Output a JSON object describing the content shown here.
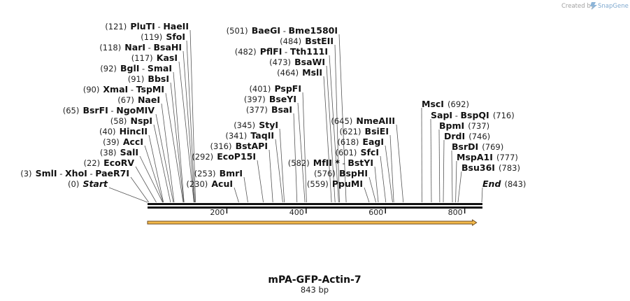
{
  "credit": {
    "prefix": "Created by",
    "brand": "SnapGene"
  },
  "sequence": {
    "name": "mPA-GFP-Actin-7",
    "length_label": "843 bp",
    "length": 843
  },
  "ruler": {
    "ticks": [
      200,
      400,
      600,
      800
    ]
  },
  "feature": {
    "from": 0,
    "to": 830,
    "color": "#f0b040"
  },
  "sites": [
    {
      "pos": 0,
      "label": "(0)",
      "names": [
        "Start"
      ],
      "italic": true
    },
    {
      "pos": 3,
      "label": "(3)",
      "names": [
        "SmlI",
        "XhoI",
        "PaeR7I"
      ]
    },
    {
      "pos": 22,
      "label": "(22)",
      "names": [
        "EcoRV"
      ]
    },
    {
      "pos": 38,
      "label": "(38)",
      "names": [
        "SalI"
      ]
    },
    {
      "pos": 39,
      "label": "(39)",
      "names": [
        "AccI"
      ]
    },
    {
      "pos": 40,
      "label": "(40)",
      "names": [
        "HincII"
      ]
    },
    {
      "pos": 58,
      "label": "(58)",
      "names": [
        "NspI"
      ]
    },
    {
      "pos": 65,
      "label": "(65)",
      "names": [
        "BsrFI",
        "NgoMIV"
      ]
    },
    {
      "pos": 67,
      "label": "(67)",
      "names": [
        "NaeI"
      ]
    },
    {
      "pos": 90,
      "label": "(90)",
      "names": [
        "XmaI",
        "TspMI"
      ]
    },
    {
      "pos": 91,
      "label": "(91)",
      "names": [
        "BbsI"
      ]
    },
    {
      "pos": 92,
      "label": "(92)",
      "names": [
        "BglI",
        "SmaI"
      ]
    },
    {
      "pos": 117,
      "label": "(117)",
      "names": [
        "KasI"
      ]
    },
    {
      "pos": 118,
      "label": "(118)",
      "names": [
        "NarI",
        "BsaHI"
      ]
    },
    {
      "pos": 119,
      "label": "(119)",
      "names": [
        "SfoI"
      ]
    },
    {
      "pos": 121,
      "label": "(121)",
      "names": [
        "PluTI",
        "HaeII"
      ]
    },
    {
      "pos": 230,
      "label": "(230)",
      "names": [
        "AcuI"
      ]
    },
    {
      "pos": 253,
      "label": "(253)",
      "names": [
        "BmrI"
      ]
    },
    {
      "pos": 292,
      "label": "(292)",
      "names": [
        "EcoP15I"
      ]
    },
    {
      "pos": 316,
      "label": "(316)",
      "names": [
        "BstAPI"
      ]
    },
    {
      "pos": 341,
      "label": "(341)",
      "names": [
        "TaqII"
      ]
    },
    {
      "pos": 345,
      "label": "(345)",
      "names": [
        "StyI"
      ]
    },
    {
      "pos": 377,
      "label": "(377)",
      "names": [
        "BsaI"
      ]
    },
    {
      "pos": 397,
      "label": "(397)",
      "names": [
        "BseYI"
      ]
    },
    {
      "pos": 401,
      "label": "(401)",
      "names": [
        "PspFI"
      ]
    },
    {
      "pos": 464,
      "label": "(464)",
      "names": [
        "MslI"
      ]
    },
    {
      "pos": 473,
      "label": "(473)",
      "names": [
        "BsaWI"
      ]
    },
    {
      "pos": 482,
      "label": "(482)",
      "names": [
        "PflFI",
        "Tth111I"
      ]
    },
    {
      "pos": 484,
      "label": "(484)",
      "names": [
        "BstEII"
      ]
    },
    {
      "pos": 501,
      "label": "(501)",
      "names": [
        "BaeGI",
        "Bme1580I"
      ]
    },
    {
      "pos": 559,
      "label": "(559)",
      "names": [
        "PpuMI"
      ]
    },
    {
      "pos": 576,
      "label": "(576)",
      "names": [
        "BspHI"
      ]
    },
    {
      "pos": 582,
      "label": "(582)",
      "names": [
        "MfII *",
        "BstYI"
      ]
    },
    {
      "pos": 601,
      "label": "(601)",
      "names": [
        "SfcI"
      ]
    },
    {
      "pos": 618,
      "label": "(618)",
      "names": [
        "EagI"
      ]
    },
    {
      "pos": 621,
      "label": "(621)",
      "names": [
        "BsiEI"
      ]
    },
    {
      "pos": 645,
      "label": "(645)",
      "names": [
        "NmeAIII"
      ]
    },
    {
      "pos": 692,
      "label": "(692)",
      "names": [
        "MscI"
      ]
    },
    {
      "pos": 716,
      "label": "(716)",
      "names": [
        "SapI",
        "BspQI"
      ]
    },
    {
      "pos": 737,
      "label": "(737)",
      "names": [
        "BpmI"
      ]
    },
    {
      "pos": 746,
      "label": "(746)",
      "names": [
        "DrdI"
      ]
    },
    {
      "pos": 769,
      "label": "(769)",
      "names": [
        "BsrDI"
      ]
    },
    {
      "pos": 777,
      "label": "(777)",
      "names": [
        "MspA1I"
      ]
    },
    {
      "pos": 783,
      "label": "(783)",
      "names": [
        "Bsu36I"
      ]
    },
    {
      "pos": 843,
      "label": "(843)",
      "names": [
        "End"
      ],
      "italic": true
    }
  ]
}
